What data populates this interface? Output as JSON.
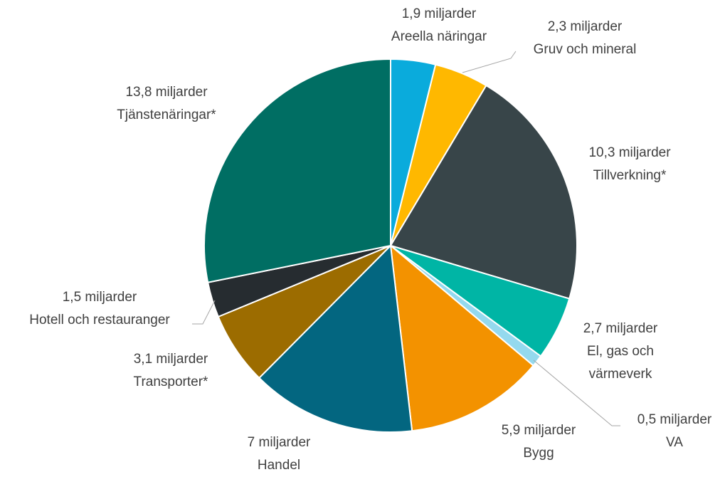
{
  "chart_data": {
    "type": "pie",
    "categories": [
      "Areella näringar",
      "Gruv och mineral",
      "Tillverkning*",
      "El, gas och värmeverk",
      "VA",
      "Bygg",
      "Handel",
      "Transporter*",
      "Hotell och restauranger",
      "Tjänstenäringar*"
    ],
    "values": [
      1.9,
      2.3,
      10.3,
      2.7,
      0.5,
      5.9,
      7,
      3.1,
      1.5,
      13.8
    ],
    "value_labels": [
      "1,9 miljarder",
      "2,3 miljarder",
      "10,3 miljarder",
      "2,7 miljarder",
      "0,5 miljarder",
      "5,9 miljarder",
      "7 miljarder",
      "3,1 miljarder",
      "1,5 miljarder",
      "13,8 miljarder"
    ],
    "colors": [
      "#0aabdc",
      "#ffb800",
      "#384549",
      "#00b5a5",
      "#94d9ee",
      "#f39200",
      "#036680",
      "#9c6c00",
      "#262c30",
      "#006e63"
    ]
  }
}
